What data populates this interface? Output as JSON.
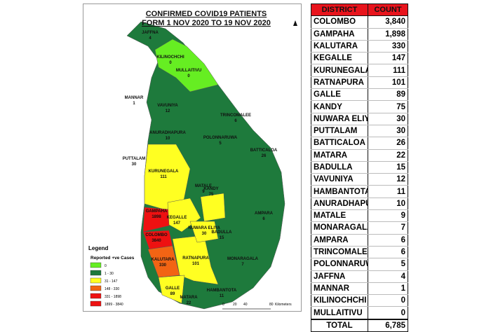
{
  "map": {
    "title_line1": "CONFIRMED COVID19 PATIENTS",
    "title_line2": "FORM 1 NOV 2020 TO 19 NOV 2020",
    "north_arrow": "north-arrow-icon",
    "legend": {
      "title": "Legend",
      "subtitle": "Reported +ve Cases",
      "items": [
        {
          "label": "0",
          "color": "#66ee22"
        },
        {
          "label": "1 - 30",
          "color": "#1e7a3c"
        },
        {
          "label": "31 - 147",
          "color": "#ffff22"
        },
        {
          "label": "148 - 330",
          "color": "#f26414"
        },
        {
          "label": "331 - 1898",
          "color": "#ee1111"
        },
        {
          "label": "1899 - 3840",
          "color": "#ee1111"
        }
      ]
    },
    "scale": {
      "ticks": [
        "0",
        "20",
        "40",
        "80"
      ],
      "unit": "Kilometers"
    },
    "districts": [
      {
        "name": "JAFFNA",
        "count": "4"
      },
      {
        "name": "KILINOCHCHI",
        "count": "0"
      },
      {
        "name": "MULLAITIVU",
        "count": "0"
      },
      {
        "name": "MANNAR",
        "count": "1"
      },
      {
        "name": "VAVUNIYA",
        "count": "12"
      },
      {
        "name": "TRINCOMALEE",
        "count": "6"
      },
      {
        "name": "ANURADHAPURA",
        "count": "10"
      },
      {
        "name": "PUTTALAM",
        "count": "30"
      },
      {
        "name": "POLONNARUWA",
        "count": "5"
      },
      {
        "name": "BATTICALOA",
        "count": "26"
      },
      {
        "name": "KURUNEGALA",
        "count": "111"
      },
      {
        "name": "MATALE",
        "count": "9"
      },
      {
        "name": "KANDY",
        "count": "75"
      },
      {
        "name": "GAMPAHA",
        "count": "1898"
      },
      {
        "name": "KEGALLE",
        "count": "147"
      },
      {
        "name": "NUWARA ELIYA",
        "count": "30"
      },
      {
        "name": "BADULLA",
        "count": "15"
      },
      {
        "name": "AMPARA",
        "count": "6"
      },
      {
        "name": "COLOMBO",
        "count": "3840"
      },
      {
        "name": "KALUTARA",
        "count": "330"
      },
      {
        "name": "RATNAPURA",
        "count": "101"
      },
      {
        "name": "MONARAGALA",
        "count": "7"
      },
      {
        "name": "GALLE",
        "count": "89"
      },
      {
        "name": "MATARA",
        "count": "22"
      },
      {
        "name": "HAMBANTOTA",
        "count": "11"
      }
    ]
  },
  "table": {
    "headers": [
      "DISTRICT",
      "COUNT"
    ],
    "rows": [
      [
        "COLOMBO",
        "3,840"
      ],
      [
        "GAMPAHA",
        "1,898"
      ],
      [
        "KALUTARA",
        "330"
      ],
      [
        "KEGALLE",
        "147"
      ],
      [
        "KURUNEGALA",
        "111"
      ],
      [
        "RATNAPURA",
        "101"
      ],
      [
        "GALLE",
        "89"
      ],
      [
        "KANDY",
        "75"
      ],
      [
        "NUWARA ELIYA",
        "30"
      ],
      [
        "PUTTALAM",
        "30"
      ],
      [
        "BATTICALOA",
        "26"
      ],
      [
        "MATARA",
        "22"
      ],
      [
        "BADULLA",
        "15"
      ],
      [
        "VAVUNIYA",
        "12"
      ],
      [
        "HAMBANTOTA",
        "11"
      ],
      [
        "ANURADHAPURA",
        "10"
      ],
      [
        "MATALE",
        "9"
      ],
      [
        "MONARAGALA",
        "7"
      ],
      [
        "AMPARA",
        "6"
      ],
      [
        "TRINCOMALEE",
        "6"
      ],
      [
        "POLONNARUWA",
        "5"
      ],
      [
        "JAFFNA",
        "4"
      ],
      [
        "MANNAR",
        "1"
      ],
      [
        "KILINOCHCHI",
        "0"
      ],
      [
        "MULLAITIVU",
        "0"
      ]
    ],
    "total_label": "TOTAL",
    "total": "6,785"
  }
}
